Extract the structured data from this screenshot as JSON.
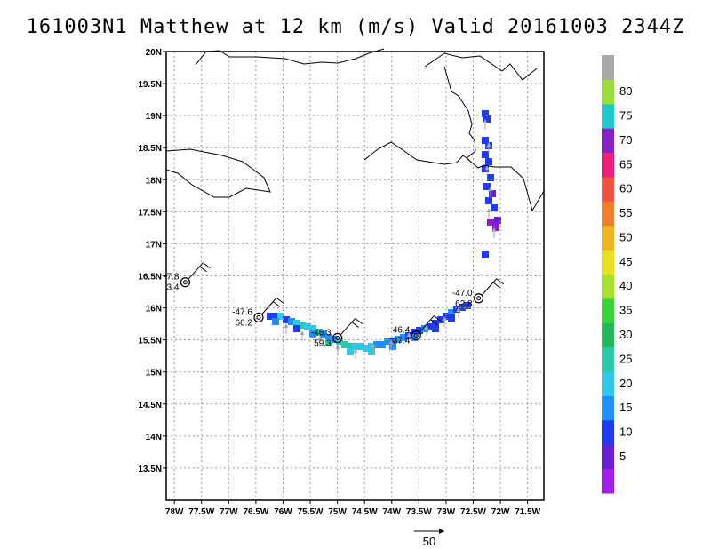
{
  "header": {
    "title": "161003N1 Matthew at 12 km (m/s) Valid 20161003 2344Z"
  },
  "map": {
    "lat_range": [
      13.0,
      20.0
    ],
    "lon_range": [
      -78.15,
      -71.2
    ],
    "lat_labels": [
      "20N",
      "19.5N",
      "19N",
      "18.5N",
      "18N",
      "17.5N",
      "17N",
      "16.5N",
      "16N",
      "15.5N",
      "15N",
      "14.5N",
      "14N",
      "13.5N"
    ],
    "lat_values": [
      20.0,
      19.5,
      19.0,
      18.5,
      18.0,
      17.5,
      17.0,
      16.5,
      16.0,
      15.5,
      15.0,
      14.5,
      14.0,
      13.5
    ],
    "lon_labels": [
      "78W",
      "77.5W",
      "77W",
      "76.5W",
      "76W",
      "75.5W",
      "75W",
      "74.5W",
      "74W",
      "73.5W",
      "73W",
      "72.5W",
      "72W",
      "71.5W"
    ],
    "lon_values": [
      -78.0,
      -77.5,
      -77.0,
      -76.5,
      -76.0,
      -75.5,
      -75.0,
      -74.5,
      -74.0,
      -73.5,
      -73.0,
      -72.5,
      -72.0,
      -71.5
    ],
    "grid": true,
    "colors": {
      "coast": "#000000",
      "grid": "#9a9a9a",
      "vector": "#a8a8a8"
    }
  },
  "colorbar": {
    "labels": [
      "5",
      "10",
      "15",
      "20",
      "25",
      "30",
      "35",
      "40",
      "45",
      "50",
      "55",
      "60",
      "65",
      "70",
      "75",
      "80"
    ],
    "colors": [
      "#a020f0",
      "#6a1fd6",
      "#1f3cf0",
      "#1e90ff",
      "#2fc8e8",
      "#28c9a6",
      "#22b85a",
      "#3ad33a",
      "#a8e02a",
      "#e8e020",
      "#f0b520",
      "#ef7f2a",
      "#f25040",
      "#f0207a",
      "#8a20c8",
      "#1ec8c8",
      "#9ae03a",
      "#a8a8a8"
    ]
  },
  "fixes": [
    {
      "lat": 16.4,
      "lon": -77.8,
      "temp": "-7.8",
      "wind": "3.4"
    },
    {
      "lat": 15.85,
      "lon": -76.45,
      "temp": "-47.6",
      "wind": "66.2"
    },
    {
      "lat": 15.53,
      "lon": -75.0,
      "temp": "-46.3",
      "wind": "59.3"
    },
    {
      "lat": 15.57,
      "lon": -73.55,
      "temp": "-46.4",
      "wind": "37.4"
    },
    {
      "lat": 16.15,
      "lon": -72.4,
      "temp": "-47.0",
      "wind": "62.8"
    }
  ],
  "reference_vector": {
    "label": "50"
  }
}
